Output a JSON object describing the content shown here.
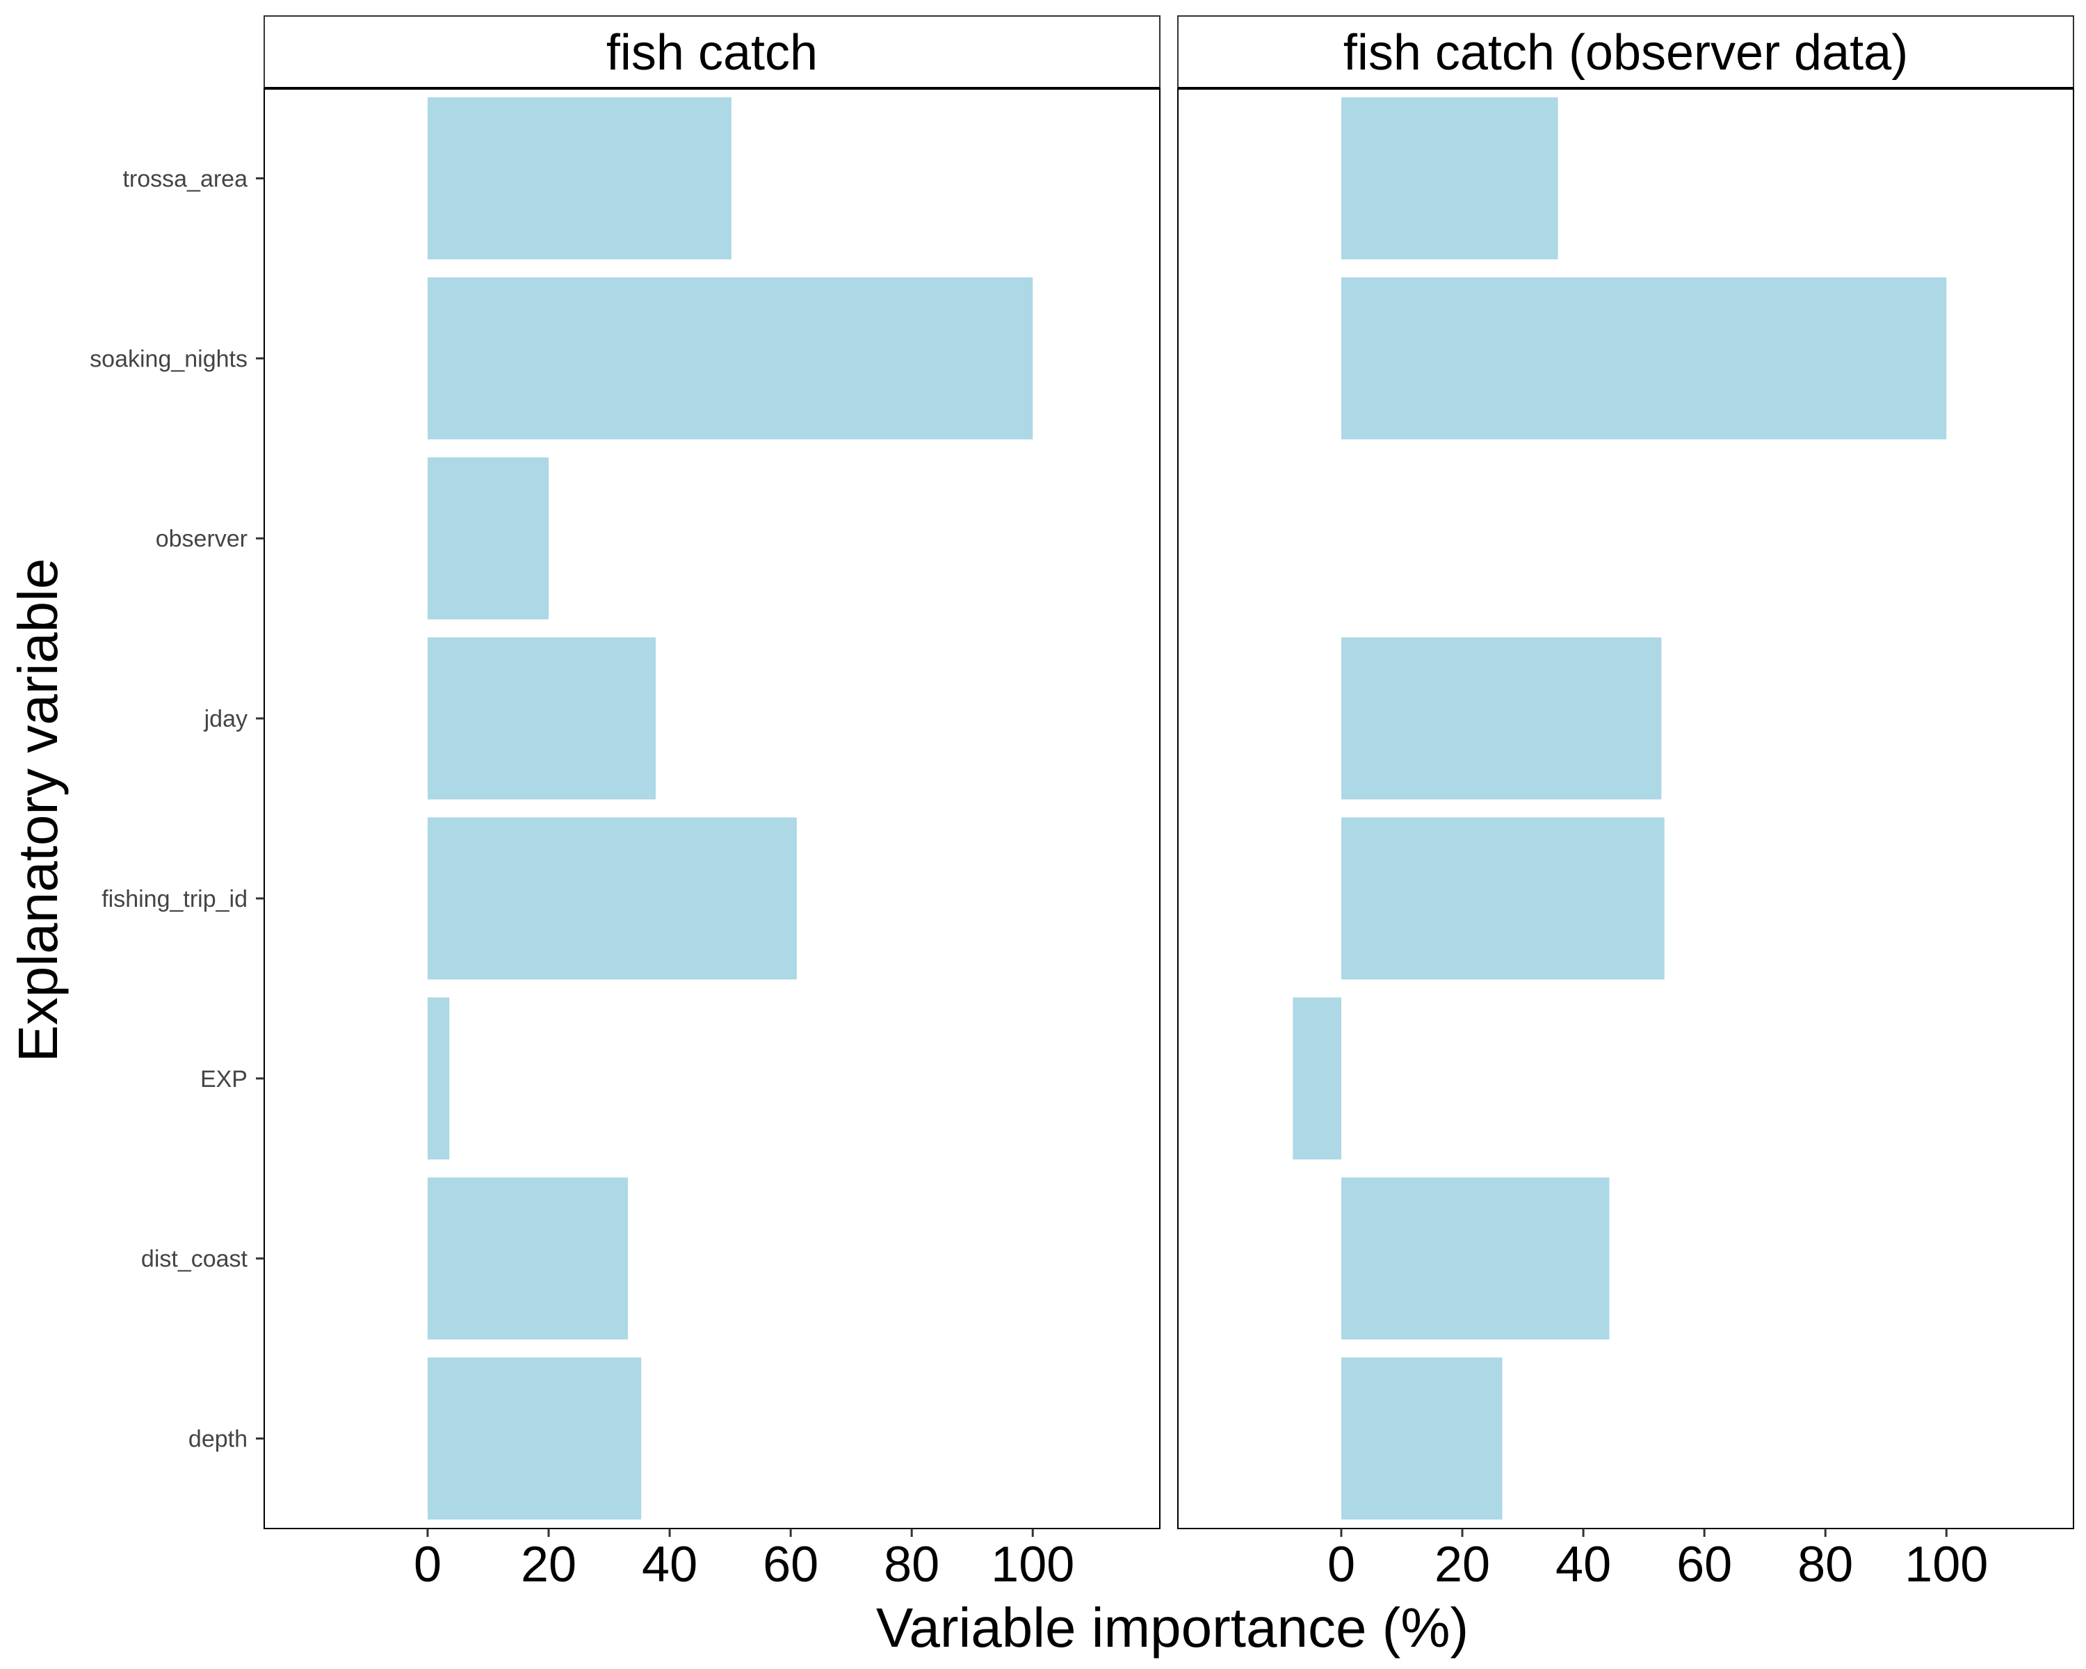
{
  "chart_data": {
    "type": "bar",
    "orientation": "horizontal",
    "xlabel": "Variable importance (%)",
    "ylabel": "Explanatory variable",
    "xlim": [
      -27,
      121
    ],
    "xticks": [
      0,
      20,
      40,
      60,
      80,
      100
    ],
    "categories": [
      "trossa_area",
      "soaking_nights",
      "observer",
      "jday",
      "fishing_trip_id",
      "EXP",
      "dist_coast",
      "depth"
    ],
    "bar_color": "#add8e6",
    "grid": false,
    "facets": [
      {
        "title": "fish catch",
        "values": [
          50.2,
          100,
          20,
          37.7,
          61,
          3.6,
          33.1,
          35.3
        ]
      },
      {
        "title": "fish catch (observer data)",
        "values": [
          35.8,
          100,
          null,
          52.9,
          53.4,
          -8,
          44.3,
          26.6
        ]
      }
    ]
  }
}
